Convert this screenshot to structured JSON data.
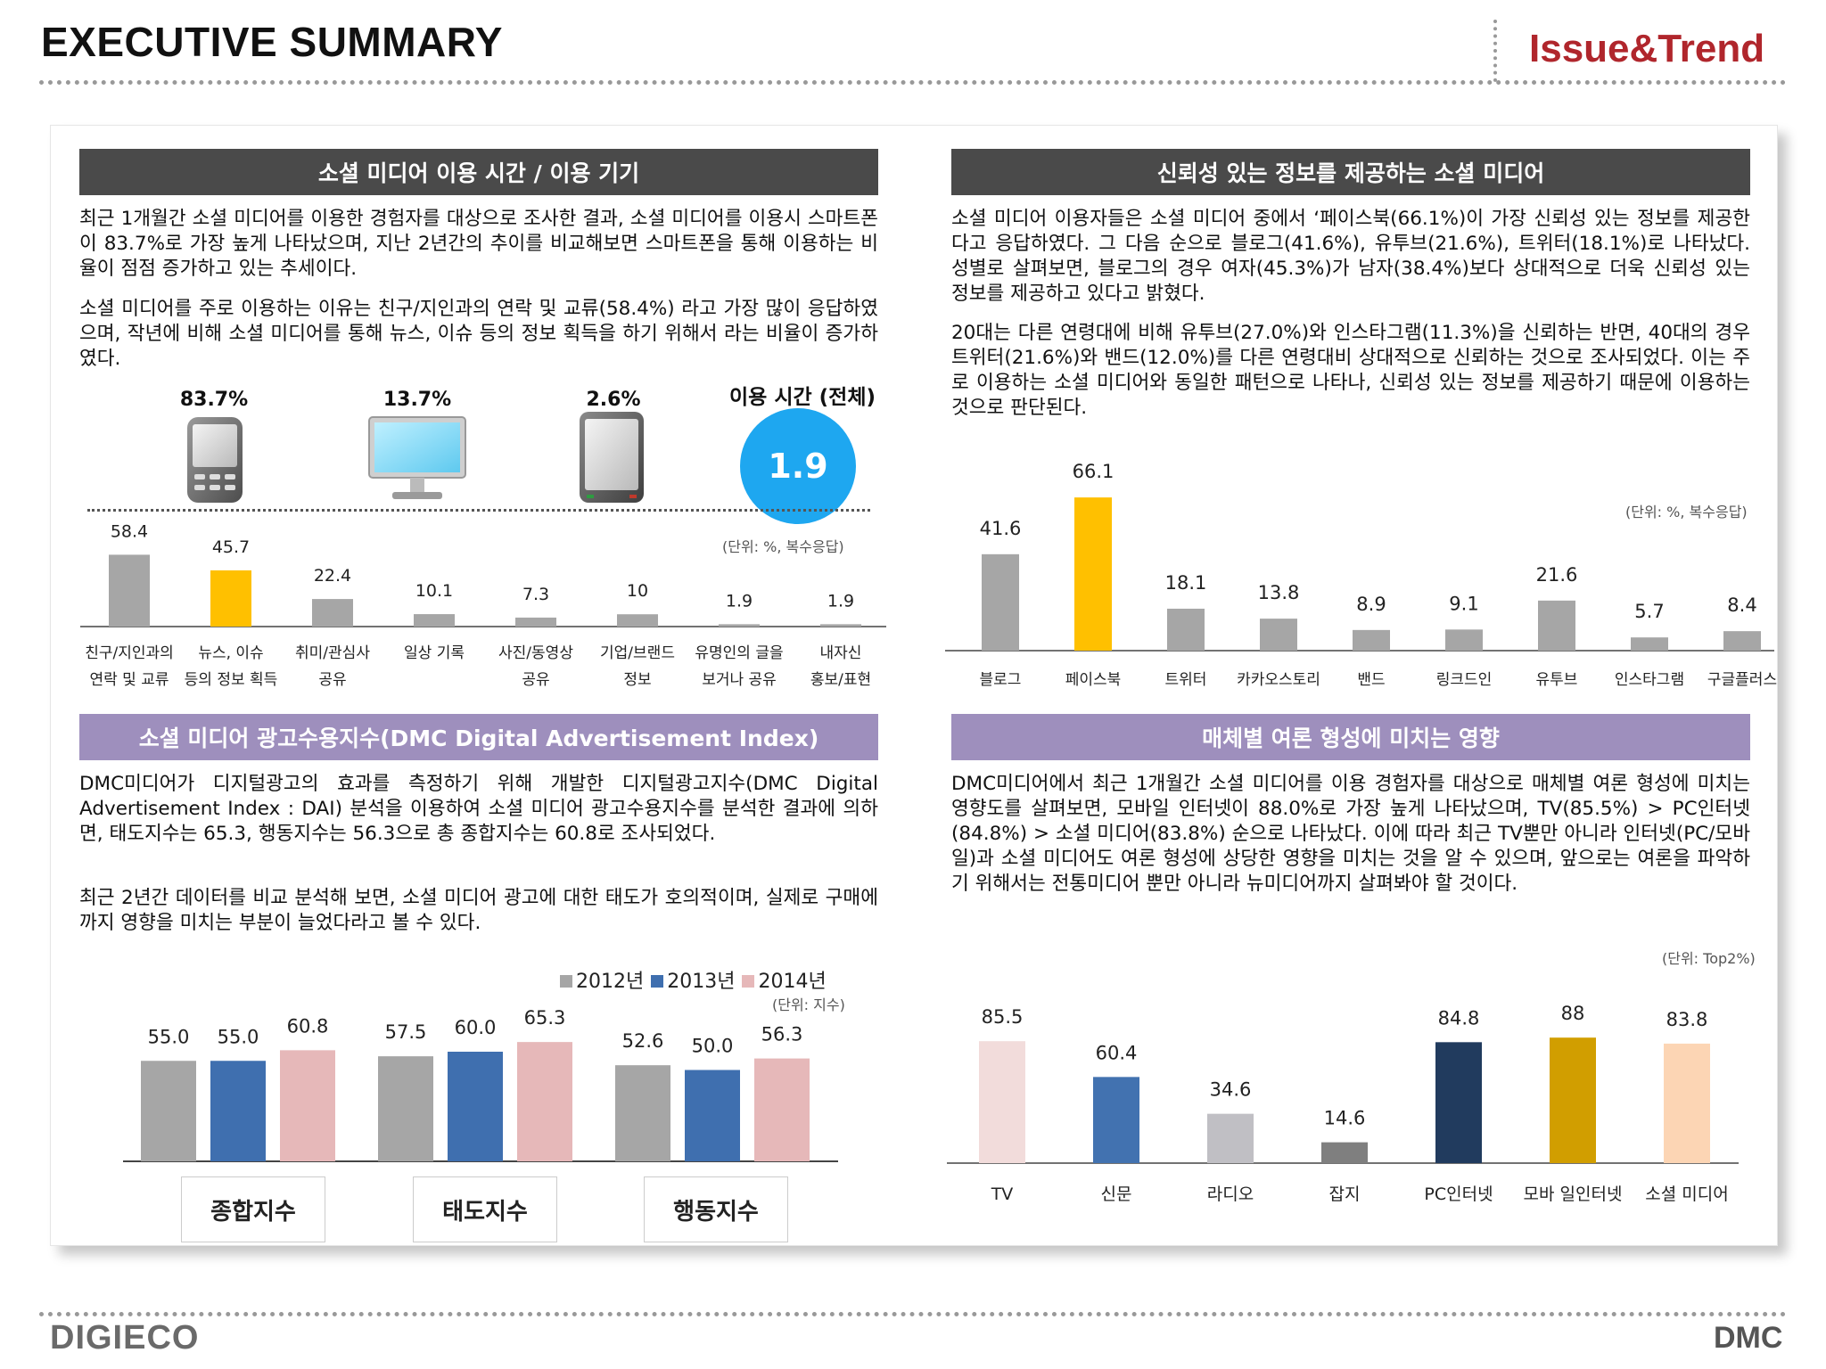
{
  "header": {
    "title": "EXECUTIVE SUMMARY",
    "brand": "Issue&Trend"
  },
  "footer": {
    "left_logo": "DIGIECO",
    "right_logo": "DMC"
  },
  "colors": {
    "gray": "#a6a6a6",
    "yellow": "#ffc000",
    "blue": "#1ea7f0",
    "dark_header": "#4a4a4a",
    "purple_header": "#9e8fbd"
  },
  "section1": {
    "heading": "소셜 미디어 이용 시간 / 이용 기기",
    "para1": "최근 1개월간 소셜 미디어를 이용한 경험자를 대상으로 조사한 결과, 소셜 미디어를 이용시 스마트폰이 83.7%로 가장 높게 나타났으며, 지난 2년간의 추이를 비교해보면 스마트폰을 통해 이용하는 비율이 점점 증가하고 있는 추세이다.",
    "para2": "소셜 미디어를 주로 이용하는 이유는 친구/지인과의 연락 및 교류(58.4%) 라고 가장 많이 응답하였으며, 작년에 비해 소셜 미디어를 통해 뉴스, 이슈 등의 정보 획득을 하기 위해서 라는 비율이 증가하였다.",
    "devices": [
      {
        "icon": "smartphone-icon",
        "value": "83.7%"
      },
      {
        "icon": "desktop-monitor-icon",
        "value": "13.7%"
      },
      {
        "icon": "tablet-icon",
        "value": "2.6%"
      }
    ],
    "usage_time_label": "이용 시간 (전체)",
    "usage_time_value": "1.9",
    "unit": "(단위:  %, 복수응답)"
  },
  "section2": {
    "heading": "신뢰성 있는 정보를 제공하는 소셜 미디어",
    "para1": "소셜 미디어 이용자들은 소셜 미디어 중에서 ‘페이스북(66.1%)이 가장 신뢰성 있는 정보를 제공한다고 응답하였다. 그 다음 순으로 블로그(41.6%), 유투브(21.6%), 트위터(18.1%)로 나타났다. 성별로 살펴보면, 블로그의 경우 여자(45.3%)가 남자(38.4%)보다 상대적으로 더욱 신뢰성 있는 정보를 제공하고 있다고 밝혔다.",
    "para2": "20대는 다른 연령대에 비해 유투브(27.0%)와 인스타그램(11.3%)을 신뢰하는 반면, 40대의 경우 트위터(21.6%)와 밴드(12.0%)를 다른 연령대비 상대적으로 신뢰하는 것으로 조사되었다. 이는 주로 이용하는 소셜 미디어와 동일한 패턴으로 나타나, 신뢰성 있는 정보를 제공하기 때문에 이용하는 것으로 판단된다.",
    "unit": "(단위:  %, 복수응답)"
  },
  "section3": {
    "heading": "소셜 미디어 광고수용지수(DMC Digital Advertisement Index)",
    "para1": "DMC미디어가 디지털광고의 효과를 측정하기 위해 개발한 디지털광고지수(DMC Digital Advertisement Index : DAI) 분석을 이용하여 소셜 미디어 광고수용지수를 분석한 결과에 의하면, 태도지수는 65.3, 행동지수는 56.3으로 총 종합지수는 60.8로 조사되었다.",
    "para2": "최근 2년간 데이터를 비교 분석해 보면, 소셜 미디어 광고에 대한 태도가 호의적이며, 실제로 구매에 까지 영향을 미치는 부분이 늘었다라고 볼 수 있다.",
    "unit": "(단위:  지수)"
  },
  "section4": {
    "heading": "매체별 여론 형성에 미치는 영향",
    "para1": "DMC미디어에서 최근 1개월간 소셜 미디어를 이용 경험자를 대상으로 매체별 여론 형성에 미치는 영향도를 살펴보면, 모바일 인터넷이 88.0%로 가장 높게 나타났으며, TV(85.5%) > PC인터넷(84.8%) > 소셜 미디어(83.8%) 순으로 나타났다. 이에 따라 최근 TV뿐만 아니라 인터넷(PC/모바일)과 소셜 미디어도 여론 형성에 상당한 영향을 미치는 것을 알 수 있으며, 앞으로는 여론을 파악하기 위해서는 전통미디어 뿐만 아니라 뉴미디어까지 살펴봐야 할 것이다.",
    "unit": "(단위:  Top2%)"
  },
  "chart_data": [
    {
      "id": "reasons",
      "type": "bar",
      "categories": [
        [
          "친구/지인과의",
          "연락 및 교류"
        ],
        [
          "뉴스, 이슈",
          "등의 정보 획득"
        ],
        [
          "취미/관심사",
          "공유"
        ],
        [
          "일상 기록",
          ""
        ],
        [
          "사진/동영상",
          "공유"
        ],
        [
          "기업/브랜드",
          "정보"
        ],
        [
          "유명인의 글을",
          "보거나 공유"
        ],
        [
          "내자신",
          "홍보/표현"
        ]
      ],
      "values": [
        58.4,
        45.7,
        22.4,
        10.1,
        7.3,
        10,
        1.9,
        1.9
      ],
      "value_labels": [
        "58.4",
        "45.7",
        "22.4",
        "10.1",
        "7.3",
        "10",
        "1.9",
        "1.9"
      ],
      "highlight_index": 1,
      "ylim": [
        0,
        100
      ]
    },
    {
      "id": "trust",
      "type": "bar",
      "categories": [
        "블로그",
        "페이스북",
        "트위터",
        "카카오스토리",
        "밴드",
        "링크드인",
        "유투브",
        "인스타그램",
        "구글플러스"
      ],
      "values": [
        41.6,
        66.1,
        18.1,
        13.8,
        8.9,
        9.1,
        21.6,
        5.7,
        8.4
      ],
      "value_labels": [
        "41.6",
        "66.1",
        "18.1",
        "13.8",
        "8.9",
        "9.1",
        "21.6",
        "5.7",
        "8.4"
      ],
      "highlight_index": 1,
      "ylim": [
        0,
        100
      ]
    },
    {
      "id": "dai",
      "type": "bar",
      "categories": [
        "종합지수",
        "태도지수",
        "행동지수"
      ],
      "series": [
        {
          "name": "2012년",
          "color": "#a6a6a6",
          "values": [
            55.0,
            57.5,
            52.6
          ],
          "labels": [
            "55.0",
            "57.5",
            "52.6"
          ]
        },
        {
          "name": "2013년",
          "color": "#3f6faf",
          "values": [
            55.0,
            60.0,
            50.0
          ],
          "labels": [
            "55.0",
            "60.0",
            "50.0"
          ]
        },
        {
          "name": "2014년",
          "color": "#e6b8b9",
          "values": [
            60.8,
            65.3,
            56.3
          ],
          "labels": [
            "60.8",
            "65.3",
            "56.3"
          ]
        }
      ],
      "ylim": [
        0,
        100
      ]
    },
    {
      "id": "media",
      "type": "bar",
      "categories": [
        "TV",
        "신문",
        "라디오",
        "잡지",
        "PC인터넷",
        "모바 일인터넷",
        "소셜 미디어"
      ],
      "values": [
        85.5,
        60.4,
        34.6,
        14.6,
        84.8,
        88,
        83.8
      ],
      "value_labels": [
        "85.5",
        "60.4",
        "34.6",
        "14.6",
        "84.8",
        "88",
        "83.8"
      ],
      "colors": [
        "#f2dcdb",
        "#4272b0",
        "#c0bfc4",
        "#7f7f7f",
        "#213b5e",
        "#d19e00",
        "#fcd5b4"
      ],
      "ylim": [
        0,
        100
      ]
    }
  ]
}
